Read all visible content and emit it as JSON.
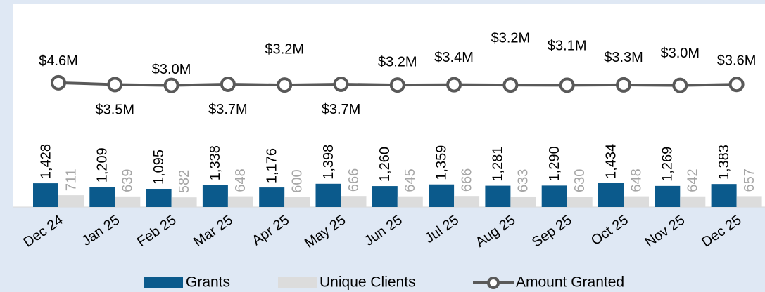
{
  "chart_data": {
    "type": "bar-line",
    "categories": [
      "Dec 24",
      "Jan 25",
      "Feb 25",
      "Mar 25",
      "Apr 25",
      "May 25",
      "Jun 25",
      "Jul 25",
      "Aug 25",
      "Sep 25",
      "Oct 25",
      "Nov 25",
      "Dec 25"
    ],
    "ylim": [
      0,
      12000
    ],
    "y2lim": [
      -70000000,
      50000000
    ],
    "series": [
      {
        "name": "Grants",
        "type": "bar",
        "color": "#0b5a8c",
        "values": [
          1428,
          1209,
          1095,
          1338,
          1176,
          1398,
          1260,
          1359,
          1281,
          1290,
          1434,
          1269,
          1383
        ],
        "value_labels": [
          "1,428",
          "1,209",
          "1,095",
          "1,338",
          "1,176",
          "1,398",
          "1,260",
          "1,359",
          "1,281",
          "1,290",
          "1,434",
          "1,269",
          "1,383"
        ]
      },
      {
        "name": "Unique Clients",
        "type": "bar",
        "color": "#dcdcdc",
        "label_color": "#a6a6a6",
        "values": [
          711,
          639,
          582,
          648,
          600,
          666,
          645,
          666,
          633,
          630,
          648,
          642,
          657
        ]
      },
      {
        "name": "Amount Granted",
        "type": "line",
        "axis": "y2",
        "color": "#595959",
        "values": [
          4600000,
          3500000,
          3000000,
          3700000,
          3200000,
          3700000,
          3200000,
          3400000,
          3200000,
          3100000,
          3300000,
          3000000,
          3600000
        ],
        "value_labels": [
          "$4.6M",
          "$3.5M",
          "$3.0M",
          "$3.7M",
          "$3.2M",
          "$3.7M",
          "$3.2M",
          "$3.4M",
          "$3.2M",
          "$3.1M",
          "$3.3M",
          "$3.0M",
          "$3.6M"
        ]
      }
    ]
  }
}
